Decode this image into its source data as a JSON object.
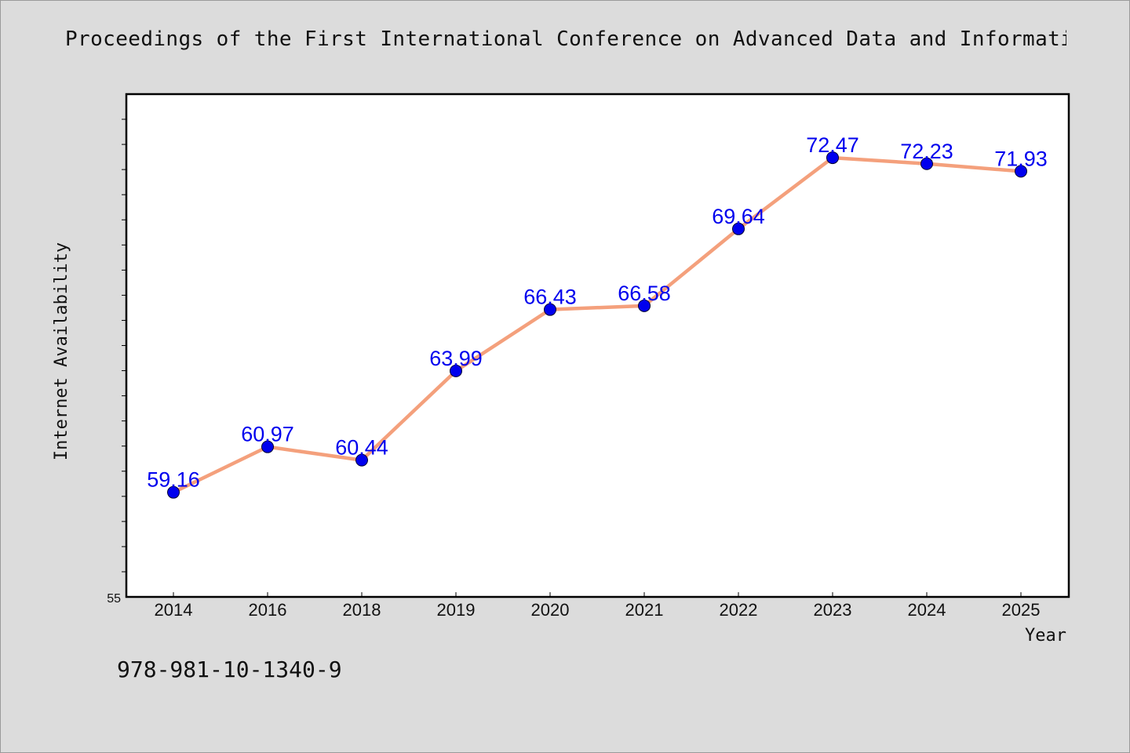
{
  "header": {
    "title": "Proceedings of the First International Conference on Advanced Data and Informati"
  },
  "footer": {
    "isbn": "978-981-10-1340-9"
  },
  "chart_data": {
    "type": "line",
    "title": "Proceedings of the First International Conference on Advanced Data and Informati",
    "xlabel": "Year",
    "ylabel": "Internet Availability",
    "categories": [
      "2014",
      "2016",
      "2018",
      "2019",
      "2020",
      "2021",
      "2022",
      "2023",
      "2024",
      "2025"
    ],
    "series": [
      {
        "values": [
          59.16,
          60.97,
          60.44,
          63.99,
          66.43,
          66.58,
          69.64,
          72.47,
          72.23,
          71.93
        ],
        "labels": [
          "59.16",
          "60.97",
          "60.44",
          "63.99",
          "66.43",
          "66.58",
          "69.64",
          "72.47",
          "72.23",
          "71.93"
        ]
      }
    ],
    "ylim": [
      55,
      75
    ],
    "yticks_labeled": [
      "55"
    ],
    "grid": false,
    "legend": "none",
    "colors": {
      "line": "#f4a07c",
      "marker": "#0000ee",
      "marker_edge": "#000033",
      "data_label": "#0000ee",
      "plot_background": "#ffffff",
      "figure_background": "#dcdcdc"
    }
  }
}
